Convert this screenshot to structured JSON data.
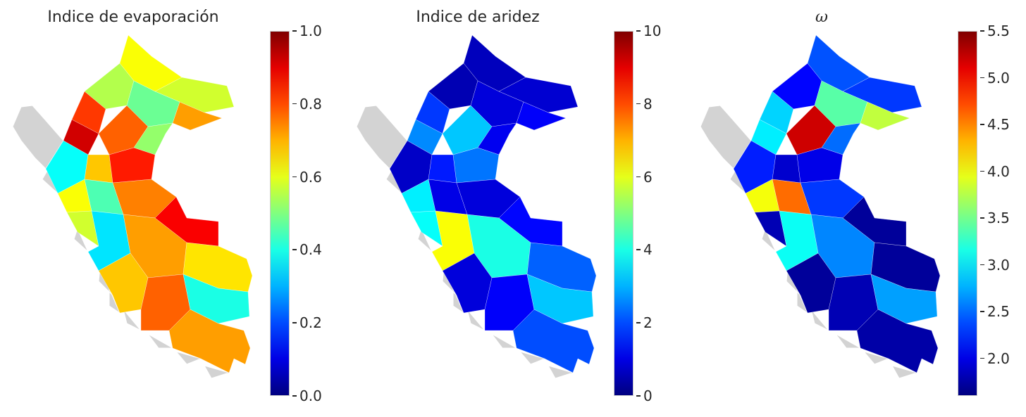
{
  "colormap": "jet",
  "background_color": "#d3d3d3",
  "chart_data": [
    {
      "type": "heatmap",
      "title": "Indice de evaporación",
      "colorbar": {
        "min": 0.0,
        "max": 1.0,
        "ticks": [
          "0.0",
          "0.2",
          "0.4",
          "0.6",
          "0.8",
          "1.0"
        ]
      },
      "region_values": [
        0.62,
        0.58,
        0.55,
        0.48,
        0.72,
        0.82,
        0.92,
        0.78,
        0.52,
        0.38,
        0.68,
        0.85,
        0.62,
        0.45,
        0.75,
        0.88,
        0.58,
        0.35,
        0.72,
        0.65
      ]
    },
    {
      "type": "heatmap",
      "title": "Indice de aridez",
      "colorbar": {
        "min": 0,
        "max": 10,
        "ticks": [
          "0",
          "2",
          "4",
          "6",
          "8",
          "10"
        ]
      },
      "region_values": [
        0.6,
        0.8,
        0.5,
        0.9,
        1.2,
        1.8,
        2.6,
        3.2,
        1.1,
        0.7,
        1.5,
        2.4,
        3.6,
        1.0,
        0.9,
        1.3,
        3.8,
        6.2,
        4.0,
        2.2
      ]
    },
    {
      "type": "heatmap",
      "title": "ω",
      "colorbar": {
        "min": 1.6,
        "max": 5.5,
        "ticks": [
          "2.0",
          "2.5",
          "3.0",
          "3.5",
          "4.0",
          "4.5",
          "5.0",
          "5.5"
        ]
      },
      "region_values": [
        2.4,
        2.3,
        2.1,
        3.4,
        3.8,
        2.9,
        3.0,
        5.2,
        2.5,
        2.2,
        1.9,
        2.0,
        4.0,
        4.6,
        2.3,
        1.7,
        1.8,
        3.1,
        2.6,
        1.7
      ]
    }
  ]
}
